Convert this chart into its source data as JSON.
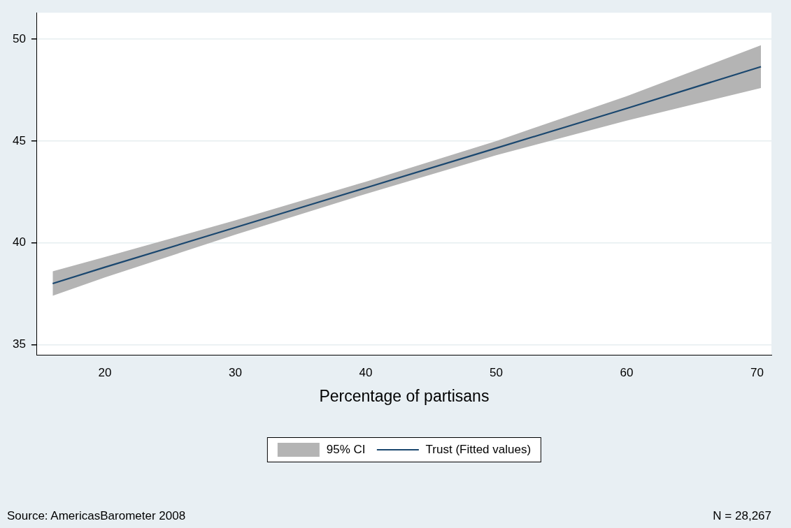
{
  "chart_data": {
    "type": "line",
    "xlabel": "Percentage of partisans",
    "x": [
      16,
      20,
      30,
      40,
      50,
      60,
      70.3
    ],
    "series": [
      {
        "name": "Trust (Fitted values)",
        "type": "line",
        "color": "#1a476f",
        "values": [
          38.0,
          38.8,
          40.75,
          42.7,
          44.65,
          46.6,
          48.65
        ],
        "lower": [
          37.4,
          38.3,
          40.4,
          42.4,
          44.3,
          46.0,
          47.6
        ],
        "upper": [
          38.6,
          39.3,
          41.1,
          43.0,
          45.0,
          47.2,
          49.7
        ]
      }
    ],
    "xlim": [
      14.8,
      71.1
    ],
    "xticks": [
      20,
      30,
      40,
      50,
      60,
      70
    ],
    "ylim": [
      34.5,
      51.3
    ],
    "yticks": [
      35,
      40,
      45,
      50
    ],
    "grid": "y",
    "legend": "bottom",
    "marker": "none",
    "line_style": "solid",
    "annotations": [
      "95% CI",
      "Source: AmericasBarometer 2008",
      "N = 28,267"
    ]
  }
}
